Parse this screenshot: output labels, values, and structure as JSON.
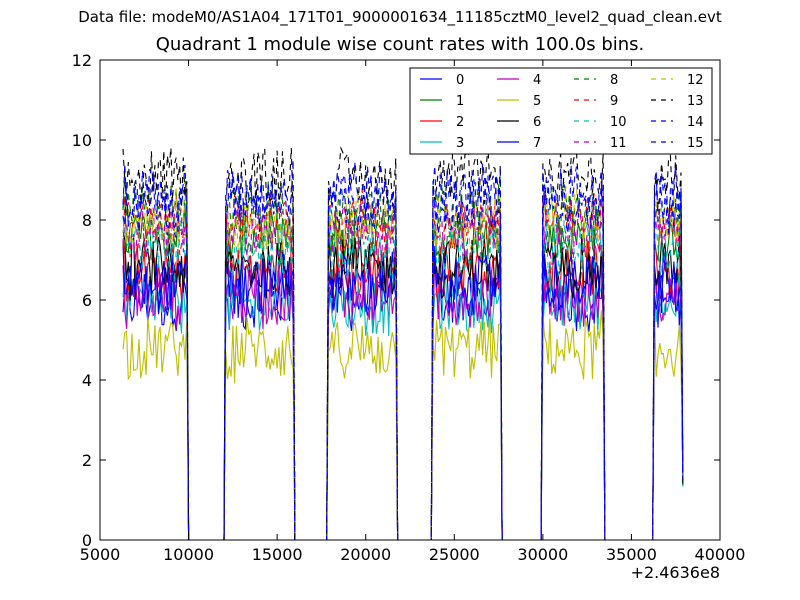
{
  "header": {
    "file_caption": "Data file: modeM0/AS1A04_171T01_9000001634_11185cztM0_level2_quad_clean.evt"
  },
  "chart_data": {
    "type": "line",
    "title": "Quadrant 1 module wise count rates with 100.0s bins.",
    "xlabel": "",
    "ylabel": "",
    "x_offset_label": "+2.4636e8",
    "xlim": [
      5000,
      40000
    ],
    "ylim": [
      0,
      12
    ],
    "x_ticks": [
      5000,
      10000,
      15000,
      20000,
      25000,
      30000,
      35000,
      40000
    ],
    "x_tick_labels": [
      "5000",
      "10000",
      "15000",
      "20000",
      "25000",
      "30000",
      "35000",
      "40000"
    ],
    "y_ticks": [
      0,
      2,
      4,
      6,
      8,
      10,
      12
    ],
    "y_tick_labels": [
      "0",
      "2",
      "4",
      "6",
      "8",
      "10",
      "12"
    ],
    "legend_position": "top-right",
    "legend_columns": 4,
    "segments": [
      {
        "start": 6300,
        "end": 9900
      },
      {
        "start": 12100,
        "end": 15900
      },
      {
        "start": 17900,
        "end": 21700
      },
      {
        "start": 23800,
        "end": 27600
      },
      {
        "start": 30000,
        "end": 33400
      },
      {
        "start": 36300,
        "end": 37900
      }
    ],
    "series": [
      {
        "name": "0",
        "color": "#0000ff",
        "style": "solid",
        "level": 6.0
      },
      {
        "name": "1",
        "color": "#008000",
        "style": "solid",
        "level": 7.6
      },
      {
        "name": "2",
        "color": "#ff0000",
        "style": "solid",
        "level": 6.7
      },
      {
        "name": "3",
        "color": "#00bfbf",
        "style": "solid",
        "level": 5.9
      },
      {
        "name": "4",
        "color": "#bf00bf",
        "style": "solid",
        "level": 6.1
      },
      {
        "name": "5",
        "color": "#bfbf00",
        "style": "solid",
        "level": 4.8
      },
      {
        "name": "6",
        "color": "#000000",
        "style": "solid",
        "level": 6.8
      },
      {
        "name": "7",
        "color": "#0000ff",
        "style": "solid",
        "level": 6.4
      },
      {
        "name": "8",
        "color": "#008000",
        "style": "dashed",
        "level": 8.2
      },
      {
        "name": "9",
        "color": "#ff0000",
        "style": "dashed",
        "level": 7.9
      },
      {
        "name": "10",
        "color": "#00bfbf",
        "style": "dashed",
        "level": 7.3
      },
      {
        "name": "11",
        "color": "#bf00bf",
        "style": "dashed",
        "level": 7.7
      },
      {
        "name": "12",
        "color": "#bfbf00",
        "style": "dashed",
        "level": 8.0
      },
      {
        "name": "13",
        "color": "#000000",
        "style": "dashed",
        "level": 9.0
      },
      {
        "name": "14",
        "color": "#0000ff",
        "style": "dashed",
        "level": 8.4
      },
      {
        "name": "15",
        "color": "#0000ff",
        "style": "dashed",
        "level": 8.6
      }
    ]
  }
}
